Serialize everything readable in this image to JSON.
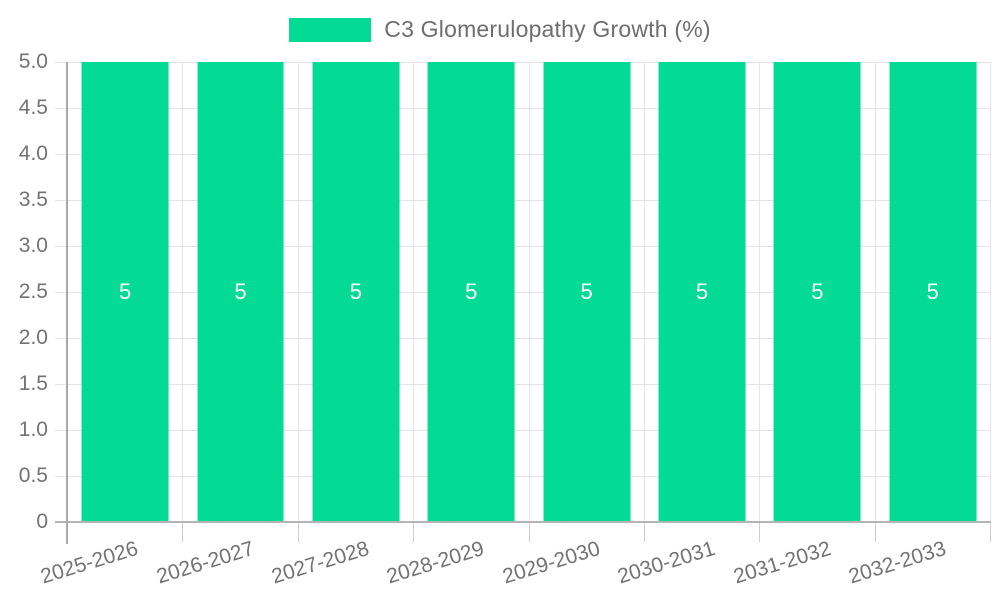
{
  "chart_data": {
    "type": "bar",
    "title": "C3 Glomerulopathy Growth (%)",
    "categories": [
      "2025-2026",
      "2026-2027",
      "2027-2028",
      "2028-2029",
      "2029-2030",
      "2030-2031",
      "2031-2032",
      "2032-2033"
    ],
    "values": [
      5,
      5,
      5,
      5,
      5,
      5,
      5,
      5
    ],
    "bar_value_labels": [
      "5",
      "5",
      "5",
      "5",
      "5",
      "5",
      "5",
      "5"
    ],
    "ylim": [
      0,
      5
    ],
    "ytick_labels": [
      "5.0",
      "4.5",
      "4.0",
      "3.5",
      "3.0",
      "2.5",
      "2.0",
      "1.5",
      "1.0",
      "0.5",
      "0"
    ],
    "xlabel": "",
    "ylabel": "",
    "grid": true,
    "legend_position": "top",
    "legend": {
      "label": "C3 Glomerulopathy Growth (%)",
      "swatch_color": "#03DB94"
    },
    "bar_color": "#03DB94",
    "value_label_color": "#FFFFFF",
    "axis_label_color": "#737373",
    "gridline_color": "#E4E4E4",
    "axis_line_color": "#B4B4B4",
    "background_color": "#FFFFFF"
  }
}
